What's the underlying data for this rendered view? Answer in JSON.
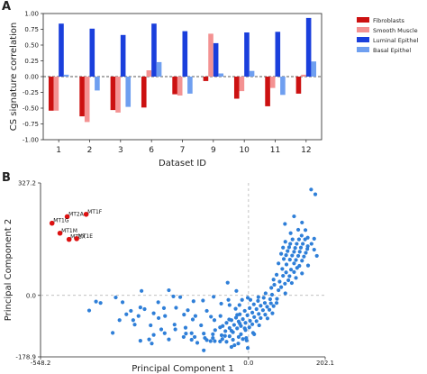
{
  "panels": {
    "a": "A",
    "b": "B"
  },
  "chart_data": [
    {
      "type": "bar",
      "categories": [
        "1",
        "2",
        "3",
        "6",
        "7",
        "9",
        "10",
        "11",
        "12"
      ],
      "xlabel": "Dataset ID",
      "ylabel": "CS signature correlation",
      "ylim": [
        -1.0,
        1.0
      ],
      "yticks": [
        "1.00",
        "0.75",
        "0.50",
        "0.25",
        "0.00",
        "-0.25",
        "-0.50",
        "-0.75",
        "-1.00"
      ],
      "ytick_values": [
        1.0,
        0.75,
        0.5,
        0.25,
        0.0,
        -0.25,
        -0.5,
        -0.75,
        -1.0
      ],
      "grid": false,
      "legend_position": "right",
      "series": [
        {
          "name": "Fibroblasts",
          "color": "#cc1111",
          "values": [
            -0.54,
            -0.63,
            -0.53,
            -0.49,
            -0.28,
            -0.07,
            -0.35,
            -0.47,
            -0.27
          ]
        },
        {
          "name": "Smooth Muscle",
          "color": "#f49292",
          "values": [
            -0.54,
            -0.72,
            -0.57,
            0.1,
            -0.3,
            0.68,
            -0.23,
            -0.18,
            0.03
          ]
        },
        {
          "name": "Luminal Epithel",
          "color": "#1a3fdc",
          "values": [
            0.84,
            0.76,
            0.66,
            0.84,
            0.72,
            0.53,
            0.7,
            0.71,
            0.93
          ]
        },
        {
          "name": "Basal Epithel",
          "color": "#6f9ff0",
          "values": [
            0.03,
            -0.22,
            -0.48,
            0.23,
            -0.27,
            0.05,
            0.09,
            -0.29,
            0.24
          ]
        }
      ]
    },
    {
      "type": "scatter",
      "xlabel": "Principal Component 1",
      "ylabel": "Principal Component 2",
      "xlim": [
        -548.2,
        202.1
      ],
      "ylim": [
        -178.9,
        327.2
      ],
      "xticks": [
        "-548.2",
        "0.0",
        "202.1"
      ],
      "xtick_values": [
        -548.2,
        0.0,
        202.1
      ],
      "yticks": [
        "327.2",
        "0.0",
        "-178.9"
      ],
      "ytick_values": [
        327.2,
        0.0,
        -178.9
      ],
      "grid": false,
      "reference_lines": [
        0,
        0
      ],
      "highlight_color": "#dd1111",
      "point_color": "#2f7fd8",
      "highlight_points": [
        {
          "label": "MT2A",
          "x": -478,
          "y": 229
        },
        {
          "label": "MT1F",
          "x": -428,
          "y": 236
        },
        {
          "label": "MT1G",
          "x": -518,
          "y": 210
        },
        {
          "label": "MT1M",
          "x": -497,
          "y": 181
        },
        {
          "label": "MT1X",
          "x": -473,
          "y": 163
        },
        {
          "label": "MT1E",
          "x": -453,
          "y": 165
        }
      ],
      "points": [
        [
          165,
          308
        ],
        [
          176,
          294
        ],
        [
          120,
          230
        ],
        [
          96,
          208
        ],
        [
          141,
          212
        ],
        [
          150,
          190
        ],
        [
          156,
          168
        ],
        [
          131,
          191
        ],
        [
          111,
          181
        ],
        [
          140,
          174
        ],
        [
          156,
          143
        ],
        [
          173,
          165
        ],
        [
          116,
          163
        ],
        [
          133,
          163
        ],
        [
          149,
          163
        ],
        [
          97,
          156
        ],
        [
          110,
          150
        ],
        [
          127,
          150
        ],
        [
          143,
          150
        ],
        [
          166,
          150
        ],
        [
          91,
          139
        ],
        [
          107,
          140
        ],
        [
          123,
          138
        ],
        [
          138,
          139
        ],
        [
          155,
          135
        ],
        [
          173,
          133
        ],
        [
          103,
          129
        ],
        [
          120,
          127
        ],
        [
          135,
          127
        ],
        [
          151,
          124
        ],
        [
          86,
          121
        ],
        [
          99,
          117
        ],
        [
          115,
          116
        ],
        [
          131,
          115
        ],
        [
          146,
          113
        ],
        [
          180,
          115
        ],
        [
          93,
          106
        ],
        [
          109,
          104
        ],
        [
          125,
          103
        ],
        [
          141,
          101
        ],
        [
          120,
          93
        ],
        [
          79,
          93
        ],
        [
          100,
          90
        ],
        [
          134,
          86
        ],
        [
          157,
          87
        ],
        [
          128,
          80
        ],
        [
          112,
          75
        ],
        [
          89,
          77
        ],
        [
          99,
          67
        ],
        [
          120,
          68
        ],
        [
          141,
          64
        ],
        [
          74,
          60
        ],
        [
          91,
          57
        ],
        [
          108,
          56
        ],
        [
          125,
          51
        ],
        [
          105,
          44
        ],
        [
          66,
          46
        ],
        [
          82,
          40
        ],
        [
          96,
          34
        ],
        [
          114,
          36
        ],
        [
          68,
          31
        ],
        [
          86,
          24
        ],
        [
          60,
          22
        ],
        [
          79,
          15
        ],
        [
          45,
          6
        ],
        [
          62,
          2
        ],
        [
          97,
          6
        ],
        [
          40,
          -7
        ],
        [
          57,
          -11
        ],
        [
          75,
          -10
        ],
        [
          25,
          -16
        ],
        [
          43,
          -22
        ],
        [
          59,
          -23
        ],
        [
          74,
          -22
        ],
        [
          14,
          -26
        ],
        [
          32,
          -30
        ],
        [
          49,
          -33
        ],
        [
          66,
          -31
        ],
        [
          3,
          -37
        ],
        [
          21,
          -40
        ],
        [
          38,
          -43
        ],
        [
          55,
          -42
        ],
        [
          -10,
          -45
        ],
        [
          10,
          -50
        ],
        [
          27,
          -54
        ],
        [
          44,
          -56
        ],
        [
          63,
          -52
        ],
        [
          -23,
          -55
        ],
        [
          -3,
          -58
        ],
        [
          15,
          -63
        ],
        [
          32,
          -66
        ],
        [
          50,
          -67
        ],
        [
          -33,
          -65
        ],
        [
          -15,
          -69
        ],
        [
          4,
          -74
        ],
        [
          21,
          -75
        ],
        [
          -45,
          -72
        ],
        [
          -26,
          -76
        ],
        [
          -8,
          -80
        ],
        [
          10,
          -84
        ],
        [
          -58,
          -80
        ],
        [
          -38,
          -86
        ],
        [
          -20,
          -89
        ],
        [
          2,
          -93
        ],
        [
          -68,
          -89
        ],
        [
          -50,
          -95
        ],
        [
          -30,
          -96
        ],
        [
          -8,
          -101
        ],
        [
          12,
          -109
        ],
        [
          -88,
          -101
        ],
        [
          -61,
          -104
        ],
        [
          -41,
          -107
        ],
        [
          -20,
          -113
        ],
        [
          -118,
          -111
        ],
        [
          -94,
          -113
        ],
        [
          -71,
          -116
        ],
        [
          -50,
          -119
        ],
        [
          -26,
          -121
        ],
        [
          -142,
          -121
        ],
        [
          -115,
          -124
        ],
        [
          -94,
          -124
        ],
        [
          -69,
          -127
        ],
        [
          -41,
          -129
        ],
        [
          -5,
          -131
        ],
        [
          -171,
          -121
        ],
        [
          -150,
          -129
        ],
        [
          -110,
          -130
        ],
        [
          -89,
          -133
        ],
        [
          -58,
          -135
        ],
        [
          -27,
          -140
        ],
        [
          -15,
          -127
        ],
        [
          -75,
          -93
        ],
        [
          -34,
          -39
        ],
        [
          15,
          -113
        ],
        [
          -2,
          -153
        ],
        [
          -37,
          -145
        ],
        [
          -195,
          -85
        ],
        [
          -165,
          -111
        ],
        [
          -237,
          -66
        ],
        [
          -220,
          -60
        ],
        [
          -285,
          -35
        ],
        [
          -258,
          -87
        ],
        [
          -221,
          -110
        ],
        [
          -99,
          -62
        ],
        [
          -125,
          -87
        ],
        [
          -72,
          -24
        ],
        [
          -166,
          -94
        ],
        [
          -300,
          -85
        ],
        [
          -390,
          -22
        ],
        [
          -420,
          -44
        ],
        [
          -350,
          -6
        ],
        [
          -304,
          -72
        ],
        [
          -92,
          -4
        ],
        [
          -145,
          -17
        ],
        [
          -74,
          -60
        ],
        [
          -17,
          -13
        ],
        [
          -55,
          37
        ],
        [
          -10,
          -96
        ],
        [
          -230,
          -99
        ],
        [
          -51,
          -70
        ],
        [
          -250,
          -115
        ],
        [
          -290,
          -60
        ],
        [
          -198,
          -3
        ],
        [
          -160,
          -43
        ],
        [
          -340,
          -72
        ],
        [
          -90,
          -72
        ],
        [
          -250,
          -52
        ],
        [
          -120,
          -15
        ],
        [
          -193,
          -99
        ],
        [
          -24,
          -28
        ],
        [
          28,
          -87
        ],
        [
          -140,
          -60
        ],
        [
          -274,
          -40
        ],
        [
          -262,
          -128
        ],
        [
          -100,
          -133
        ],
        [
          -23,
          -82
        ],
        [
          -170,
          -56
        ],
        [
          -45,
          -103
        ],
        [
          -75,
          -134
        ],
        [
          -210,
          -128
        ],
        [
          -310,
          -45
        ],
        [
          -358,
          -109
        ],
        [
          -223,
          -37
        ],
        [
          -62,
          -118
        ],
        [
          -53,
          -13
        ],
        [
          -191,
          -36
        ],
        [
          -322,
          -55
        ],
        [
          -147,
          -70
        ],
        [
          -238,
          -20
        ],
        [
          -282,
          13
        ],
        [
          -110,
          -45
        ],
        [
          -32,
          13
        ],
        [
          -2,
          -7
        ],
        [
          26,
          -5
        ],
        [
          5,
          -13
        ],
        [
          -135,
          -138
        ],
        [
          -30,
          -57
        ],
        [
          -285,
          -132
        ],
        [
          -210,
          15
        ],
        [
          -50,
          -28
        ],
        [
          -332,
          -20
        ],
        [
          -402,
          -18
        ],
        [
          -255,
          -140
        ],
        [
          -150,
          -110
        ],
        [
          -180,
          -5
        ],
        [
          -118,
          -160
        ],
        [
          -6,
          -124
        ],
        [
          -45,
          -150
        ]
      ]
    }
  ]
}
